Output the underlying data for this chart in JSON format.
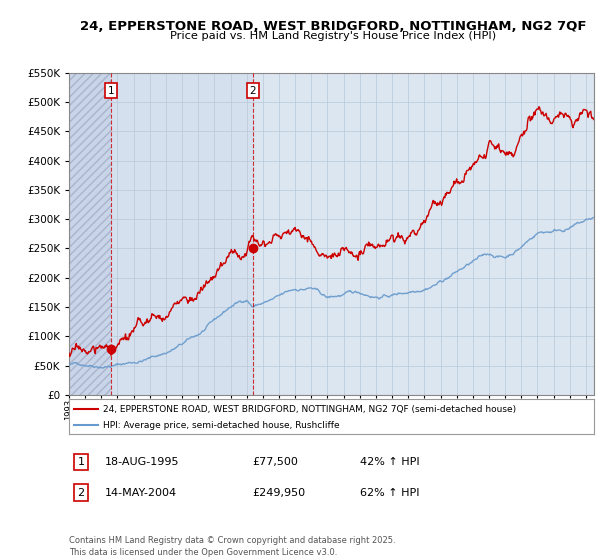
{
  "title_line1": "24, EPPERSTONE ROAD, WEST BRIDGFORD, NOTTINGHAM, NG2 7QF",
  "title_line2": "Price paid vs. HM Land Registry's House Price Index (HPI)",
  "purchases": [
    {
      "label": "1",
      "date_num": 1995.62,
      "price": 77500,
      "note": "18-AUG-1995",
      "pct": "42% ↑ HPI"
    },
    {
      "label": "2",
      "date_num": 2004.37,
      "price": 249950,
      "note": "14-MAY-2004",
      "pct": "62% ↑ HPI"
    }
  ],
  "legend_red": "24, EPPERSTONE ROAD, WEST BRIDGFORD, NOTTINGHAM, NG2 7QF (semi-detached house)",
  "legend_blue": "HPI: Average price, semi-detached house, Rushcliffe",
  "footer": "Contains HM Land Registry data © Crown copyright and database right 2025.\nThis data is licensed under the Open Government Licence v3.0.",
  "red_color": "#cc0000",
  "blue_color": "#6699cc",
  "ylim_max": 550000,
  "ylim_min": 0,
  "hpi_knots_x": [
    1993.0,
    1994.0,
    1995.0,
    1996.0,
    1997.0,
    1998.0,
    1999.0,
    2000.0,
    2001.0,
    2002.0,
    2003.0,
    2004.0,
    2004.37,
    2005.0,
    2006.0,
    2007.0,
    2008.0,
    2009.0,
    2010.0,
    2011.0,
    2012.0,
    2013.0,
    2014.0,
    2015.0,
    2016.0,
    2017.0,
    2018.0,
    2019.0,
    2020.0,
    2021.0,
    2022.0,
    2023.0,
    2024.0,
    2025.5
  ],
  "hpi_knots_y": [
    51000,
    53000,
    55000,
    58000,
    63000,
    70000,
    80000,
    93000,
    107000,
    127000,
    150000,
    163000,
    152000,
    158000,
    165000,
    175000,
    178000,
    158000,
    163000,
    163000,
    160000,
    163000,
    170000,
    182000,
    196000,
    213000,
    228000,
    238000,
    233000,
    253000,
    278000,
    283000,
    290000,
    303000
  ],
  "red_knots_x": [
    1993.0,
    1994.0,
    1995.0,
    1995.62,
    1996.0,
    1997.0,
    1998.0,
    1999.0,
    2000.0,
    2001.0,
    2002.0,
    2003.0,
    2004.0,
    2004.37,
    2005.0,
    2006.0,
    2007.0,
    2008.0,
    2009.0,
    2010.0,
    2011.0,
    2012.0,
    2013.0,
    2014.0,
    2015.0,
    2016.0,
    2017.0,
    2018.0,
    2019.0,
    2020.0,
    2021.0,
    2022.0,
    2023.0,
    2024.0,
    2025.5
  ],
  "red_knots_y": [
    71000,
    73000,
    75000,
    77500,
    80000,
    87000,
    97000,
    109000,
    128000,
    147000,
    173000,
    205000,
    215000,
    249950,
    268000,
    285000,
    295000,
    295000,
    255000,
    263000,
    260000,
    255000,
    262000,
    274000,
    294000,
    317000,
    343000,
    365000,
    382000,
    370000,
    405000,
    440000,
    452000,
    462000,
    470000
  ]
}
